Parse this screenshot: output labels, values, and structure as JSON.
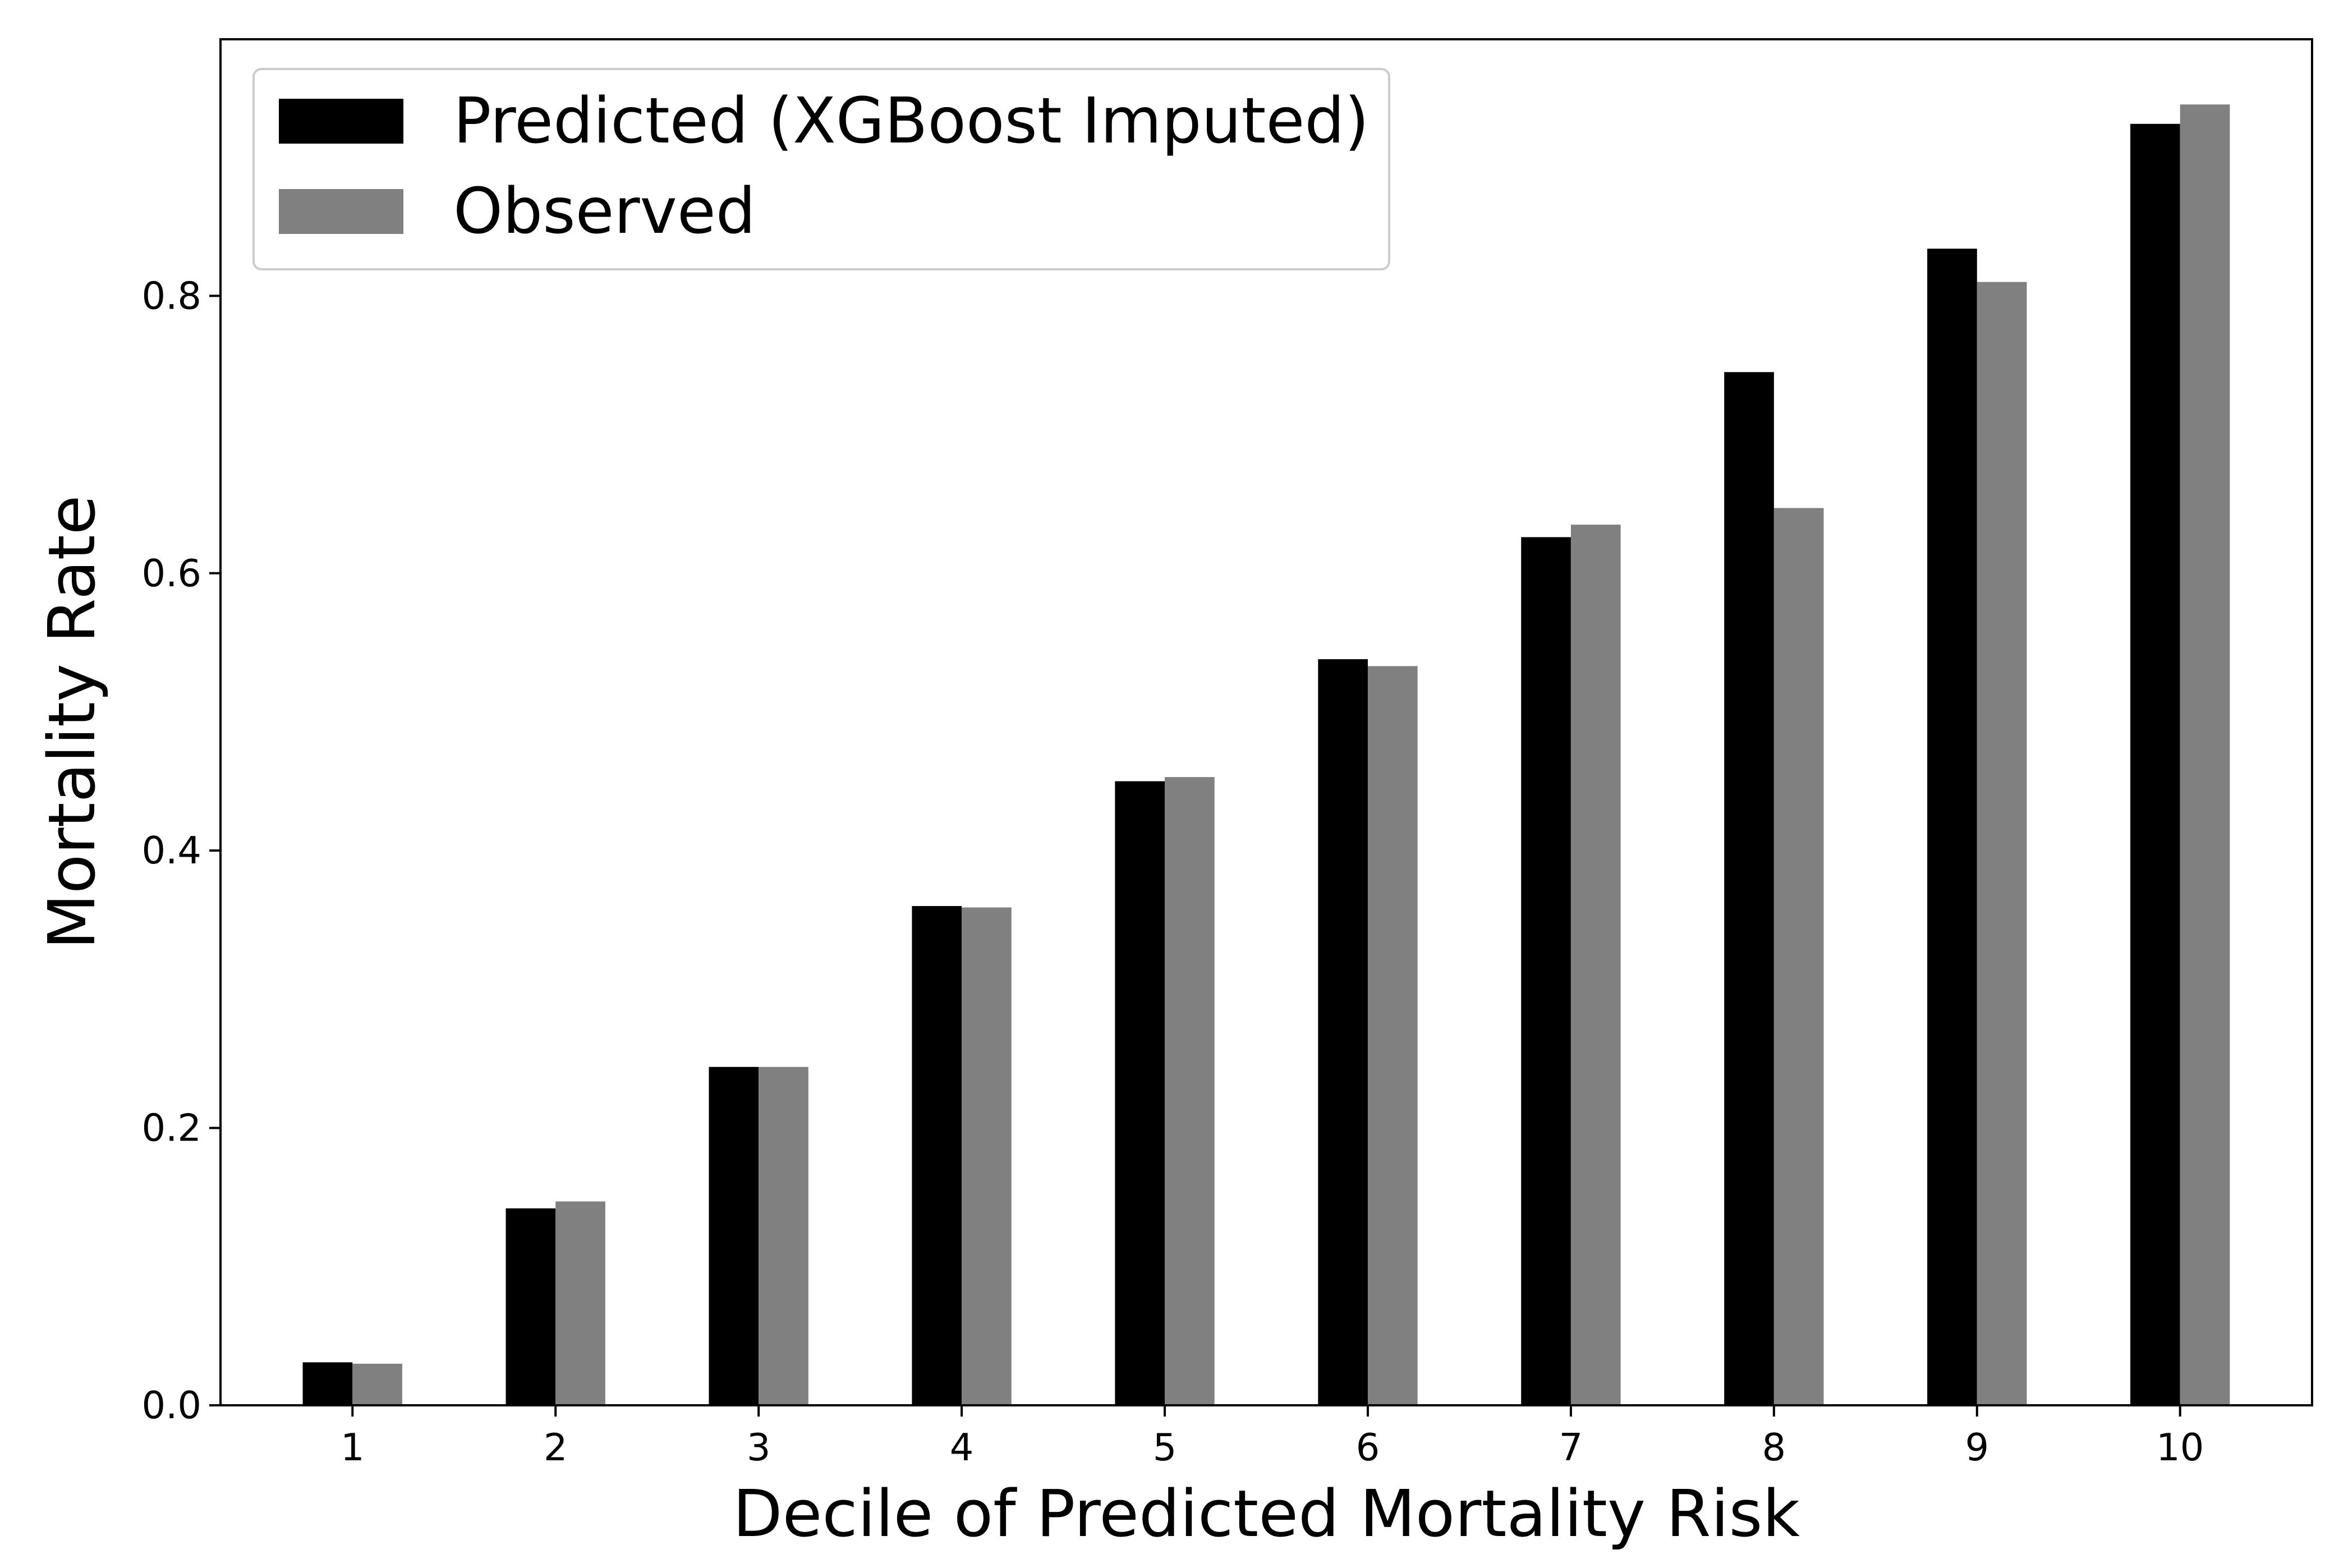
{
  "chart_data": {
    "type": "bar",
    "xlabel": "Decile of Predicted Mortality Risk",
    "ylabel": "Mortality Rate",
    "categories": [
      "1",
      "2",
      "3",
      "4",
      "5",
      "6",
      "7",
      "8",
      "9",
      "10"
    ],
    "series": [
      {
        "name": "Predicted (XGBoost Imputed)",
        "color": "#000000",
        "values": [
          0.031,
          0.142,
          0.244,
          0.36,
          0.45,
          0.538,
          0.626,
          0.745,
          0.834,
          0.924
        ]
      },
      {
        "name": "Observed",
        "color": "#808080",
        "values": [
          0.03,
          0.147,
          0.244,
          0.359,
          0.453,
          0.533,
          0.635,
          0.647,
          0.81,
          0.938
        ]
      }
    ],
    "ylim": [
      0,
      0.985
    ],
    "yticks": [
      0.0,
      0.2,
      0.4,
      0.6,
      0.8
    ],
    "ytick_labels": [
      "0.0",
      "0.2",
      "0.4",
      "0.6",
      "0.8"
    ],
    "legend_position": "upper-left",
    "grid": false
  }
}
